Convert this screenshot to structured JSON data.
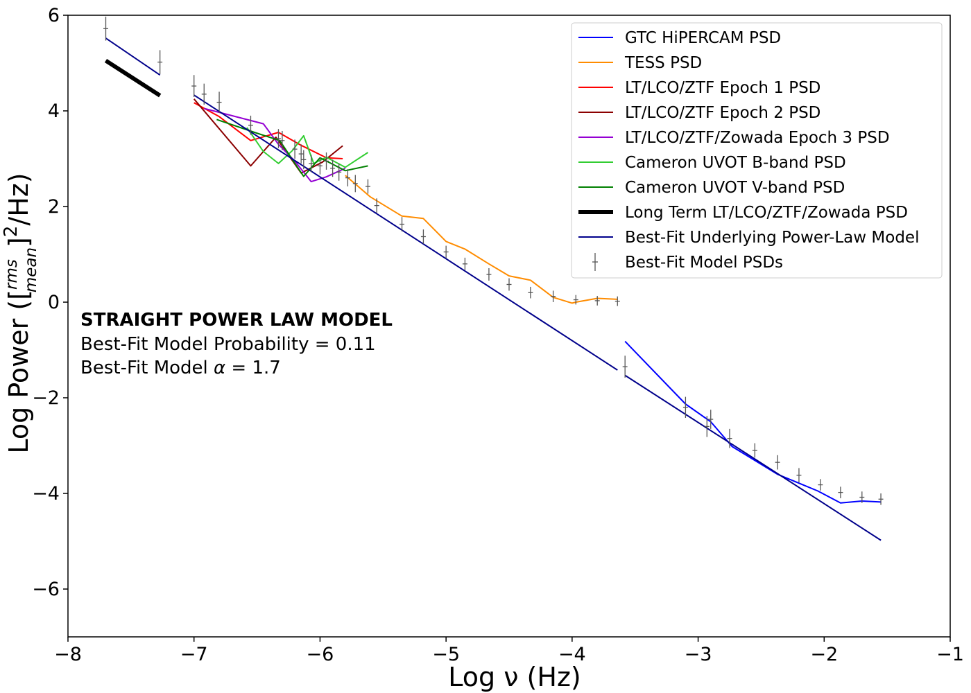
{
  "chart_data": {
    "type": "line",
    "title": "",
    "xlabel": "Log ν (Hz)",
    "ylabel_prefix": "Log Power ([",
    "ylabel_frac_num": "rms",
    "ylabel_frac_den": "mean",
    "ylabel_suffix": "]",
    "ylabel_exp": "2",
    "ylabel_unit": "/Hz)",
    "xlim": [
      -8,
      -1
    ],
    "ylim": [
      -7,
      6
    ],
    "xticks": [
      -8,
      -7,
      -6,
      -5,
      -4,
      -3,
      -2,
      -1
    ],
    "xtick_labels": [
      "−8",
      "−7",
      "−6",
      "−5",
      "−4",
      "−3",
      "−2",
      "−1"
    ],
    "yticks": [
      -6,
      -4,
      -2,
      0,
      2,
      4,
      6
    ],
    "ytick_labels": [
      "−6",
      "−4",
      "−2",
      "0",
      "2",
      "4",
      "6"
    ],
    "grid": false,
    "legend_position": "top-right",
    "annotation": {
      "title": "STRAIGHT POWER LAW MODEL",
      "line1": "Best-Fit Model Probability = 0.11",
      "line2_prefix": "Best-Fit Model ",
      "line2_symbol": "α",
      "line2_suffix": " = 1.7"
    },
    "series": [
      {
        "name": "GTC HiPERCAM PSD",
        "color": "#0000ff",
        "width": 2,
        "x": [
          -3.58,
          -3.1,
          -2.9,
          -2.73,
          -2.37,
          -2.05,
          -1.87,
          -1.7,
          -1.55
        ],
        "y": [
          -0.82,
          -2.13,
          -2.5,
          -3.02,
          -3.6,
          -3.95,
          -4.2,
          -4.16,
          -4.18
        ]
      },
      {
        "name": "TESS PSD",
        "color": "#ff8c00",
        "width": 2,
        "x": [
          -5.8,
          -5.6,
          -5.35,
          -5.18,
          -5.0,
          -4.85,
          -4.66,
          -4.5,
          -4.33,
          -4.15,
          -4.0,
          -3.97,
          -3.8,
          -3.64
        ],
        "y": [
          2.65,
          2.2,
          1.8,
          1.75,
          1.27,
          1.11,
          0.8,
          0.55,
          0.46,
          0.1,
          -0.02,
          0.0,
          0.08,
          0.06
        ]
      },
      {
        "name": "LT/LCO/ZTF Epoch 1 PSD",
        "color": "#ff0000",
        "width": 2,
        "x": [
          -7.0,
          -6.8,
          -6.55,
          -6.33,
          -6.15,
          -5.95,
          -5.82
        ],
        "y": [
          4.17,
          3.88,
          3.38,
          3.55,
          3.28,
          3.02,
          3.0
        ]
      },
      {
        "name": "LT/LCO/ZTF Epoch 2 PSD",
        "color": "#8b0000",
        "width": 2,
        "x": [
          -7.0,
          -6.55,
          -6.35,
          -6.15,
          -5.98,
          -5.82
        ],
        "y": [
          4.25,
          2.85,
          3.45,
          2.7,
          2.93,
          3.27
        ]
      },
      {
        "name": "LT/LCO/ZTF/Zowada Epoch 3 PSD",
        "color": "#9400d3",
        "width": 2,
        "x": [
          -6.92,
          -6.45,
          -6.33,
          -6.2,
          -6.07,
          -5.95,
          -5.8
        ],
        "y": [
          4.05,
          3.73,
          3.3,
          2.95,
          2.52,
          2.62,
          2.8
        ]
      },
      {
        "name": "Cameron UVOT B-band PSD",
        "color": "#32cd32",
        "width": 2,
        "x": [
          -6.58,
          -6.45,
          -6.33,
          -6.22,
          -6.13,
          -6.05,
          -5.95,
          -5.8,
          -5.62
        ],
        "y": [
          3.65,
          3.15,
          2.9,
          3.17,
          3.48,
          2.9,
          3.03,
          2.82,
          3.13
        ]
      },
      {
        "name": "Cameron UVOT V-band PSD",
        "color": "#008000",
        "width": 2,
        "x": [
          -6.82,
          -6.52,
          -6.32,
          -6.13,
          -6.0,
          -5.8,
          -5.62
        ],
        "y": [
          3.82,
          3.55,
          3.38,
          2.63,
          3.02,
          2.75,
          2.85
        ]
      },
      {
        "name": "Long Term LT/LCO/ZTF/Zowada PSD",
        "color": "#000000",
        "width": 6,
        "x": [
          -7.7,
          -7.27
        ],
        "y": [
          5.05,
          4.32
        ]
      },
      {
        "name": "Best-Fit Underlying Power-Law Model",
        "color": "#00008b",
        "width": 2,
        "segments": [
          {
            "x": [
              -7.7,
              -7.27
            ],
            "y": [
              5.52,
              4.75
            ]
          },
          {
            "x": [
              -7.0,
              -3.64
            ],
            "y": [
              4.33,
              -1.42
            ]
          },
          {
            "x": [
              -3.58,
              -1.55
            ],
            "y": [
              -1.53,
              -4.98
            ]
          }
        ]
      },
      {
        "name": "Best-Fit Model PSDs",
        "color": "#555555",
        "type": "errorbar",
        "points": [
          [
            -7.7,
            5.72,
            0.25
          ],
          [
            -7.27,
            5.02,
            0.25
          ],
          [
            -7.0,
            4.52,
            0.23
          ],
          [
            -6.92,
            4.35,
            0.22
          ],
          [
            -6.8,
            4.18,
            0.22
          ],
          [
            -6.55,
            3.7,
            0.2
          ],
          [
            -6.33,
            3.42,
            0.2
          ],
          [
            -6.3,
            3.38,
            0.2
          ],
          [
            -6.2,
            3.2,
            0.2
          ],
          [
            -6.15,
            3.1,
            0.2
          ],
          [
            -6.13,
            2.98,
            0.2
          ],
          [
            -6.07,
            2.9,
            0.18
          ],
          [
            -6.0,
            2.85,
            0.18
          ],
          [
            -5.95,
            2.95,
            0.18
          ],
          [
            -5.9,
            2.8,
            0.18
          ],
          [
            -5.85,
            2.72,
            0.18
          ],
          [
            -5.78,
            2.6,
            0.18
          ],
          [
            -5.72,
            2.48,
            0.18
          ],
          [
            -5.62,
            2.42,
            0.15
          ],
          [
            -5.55,
            2.02,
            0.15
          ],
          [
            -5.35,
            1.63,
            0.15
          ],
          [
            -5.18,
            1.37,
            0.15
          ],
          [
            -5.0,
            1.05,
            0.13
          ],
          [
            -4.85,
            0.8,
            0.13
          ],
          [
            -4.66,
            0.58,
            0.13
          ],
          [
            -4.5,
            0.37,
            0.13
          ],
          [
            -4.33,
            0.2,
            0.12
          ],
          [
            -4.15,
            0.12,
            0.12
          ],
          [
            -3.97,
            0.05,
            0.1
          ],
          [
            -3.8,
            0.03,
            0.1
          ],
          [
            -3.64,
            0.02,
            0.1
          ],
          [
            -3.58,
            -1.35,
            0.23
          ],
          [
            -3.1,
            -2.2,
            0.22
          ],
          [
            -2.93,
            -2.6,
            0.22
          ],
          [
            -2.9,
            -2.45,
            0.2
          ],
          [
            -2.75,
            -2.85,
            0.2
          ],
          [
            -2.55,
            -3.1,
            0.15
          ],
          [
            -2.37,
            -3.35,
            0.15
          ],
          [
            -2.2,
            -3.62,
            0.15
          ],
          [
            -2.03,
            -3.82,
            0.12
          ],
          [
            -1.87,
            -3.98,
            0.12
          ],
          [
            -1.7,
            -4.08,
            0.12
          ],
          [
            -1.55,
            -4.12,
            0.12
          ]
        ]
      }
    ]
  }
}
